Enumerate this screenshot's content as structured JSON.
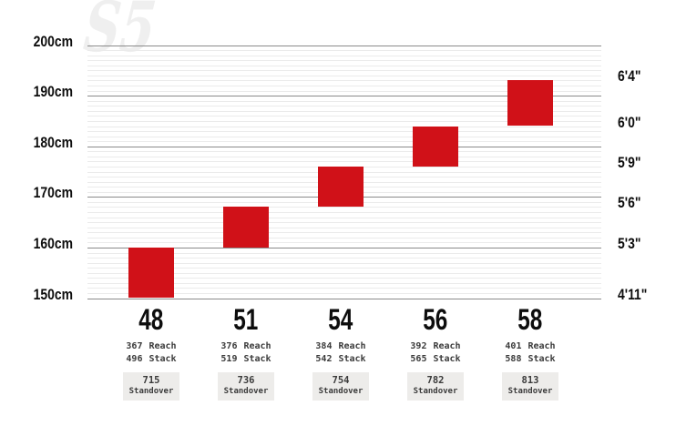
{
  "watermark": "S5",
  "colors": {
    "bar_red": "#d01118",
    "grid_major": "#8a8a8a",
    "grid_minor": "#ebebeb",
    "standover_box_bg": "#edecea",
    "spec_text": "#3b3b3b",
    "label_text": "#0d0d0d",
    "watermark_text": "#efefef"
  },
  "chart_data": {
    "type": "bar",
    "subtype": "floating-range-columns",
    "watermark": "S5",
    "grid": {
      "minor_step_cm": 1,
      "major_step_cm": 10
    },
    "y_axis_left": {
      "unit": "cm",
      "range": [
        150,
        200
      ],
      "ticks": [
        {
          "label": "200cm",
          "cm": 200
        },
        {
          "label": "190cm",
          "cm": 190
        },
        {
          "label": "180cm",
          "cm": 180
        },
        {
          "label": "170cm",
          "cm": 170
        },
        {
          "label": "160cm",
          "cm": 160
        },
        {
          "label": "150cm",
          "cm": 150
        }
      ]
    },
    "y_axis_right": {
      "unit": "feet-inches",
      "ticks": [
        {
          "label": "6'4\"",
          "cm": 193
        },
        {
          "label": "6'0\"",
          "cm": 184
        },
        {
          "label": "5'9\"",
          "cm": 176
        },
        {
          "label": "5'6\"",
          "cm": 168
        },
        {
          "label": "5'3\"",
          "cm": 160
        },
        {
          "label": "4'11\"",
          "cm": 150
        }
      ]
    },
    "x_categories": [
      "48",
      "51",
      "54",
      "56",
      "58"
    ],
    "sizes": [
      {
        "size": "48",
        "height_range_cm": [
          150,
          160
        ],
        "reach": "367",
        "stack": "496",
        "standover": "715"
      },
      {
        "size": "51",
        "height_range_cm": [
          160,
          168
        ],
        "reach": "376",
        "stack": "519",
        "standover": "736"
      },
      {
        "size": "54",
        "height_range_cm": [
          168,
          176
        ],
        "reach": "384",
        "stack": "542",
        "standover": "754"
      },
      {
        "size": "56",
        "height_range_cm": [
          176,
          184
        ],
        "reach": "392",
        "stack": "565",
        "standover": "782"
      },
      {
        "size": "58",
        "height_range_cm": [
          184,
          193
        ],
        "reach": "401",
        "stack": "588",
        "standover": "813"
      }
    ],
    "field_labels": {
      "reach": "Reach",
      "stack": "Stack",
      "standover": "Standover"
    }
  }
}
